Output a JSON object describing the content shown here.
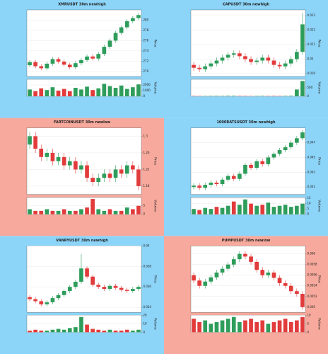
{
  "chart_data": [
    {
      "type": "candlestick",
      "title": "XMRUSDT 30m newhigh",
      "background": "#8cd4f8",
      "ylabel": "Price",
      "volume_label": "Volume",
      "up_color": "#2e9d5b",
      "down_color": "#e23b3b",
      "grid": true,
      "open": [
        271.2,
        271.8,
        271.0,
        270.6,
        271.5,
        272.4,
        271.9,
        271.3,
        270.8,
        271.6,
        272.2,
        272.9,
        272.5,
        273.4,
        274.8,
        276.0,
        277.5,
        278.6,
        279.8,
        280.4
      ],
      "high": [
        272.2,
        272.2,
        271.4,
        271.9,
        272.8,
        272.8,
        272.3,
        271.7,
        272.0,
        272.6,
        273.3,
        273.3,
        273.8,
        275.2,
        276.4,
        277.9,
        279.0,
        280.2,
        280.8,
        281.4
      ],
      "low": [
        270.8,
        270.6,
        270.2,
        270.2,
        271.1,
        271.5,
        270.9,
        270.4,
        270.4,
        271.2,
        271.8,
        272.1,
        272.1,
        273.0,
        274.4,
        275.6,
        277.1,
        278.2,
        279.4,
        280.0
      ],
      "close": [
        271.8,
        271.0,
        270.6,
        271.5,
        272.4,
        271.9,
        271.3,
        270.8,
        271.6,
        272.2,
        272.9,
        272.5,
        273.4,
        274.8,
        276.0,
        277.5,
        278.6,
        279.8,
        280.4,
        281.0
      ],
      "volume": [
        1200,
        900,
        1400,
        1100,
        1600,
        1000,
        1300,
        900,
        1500,
        1200,
        1700,
        1100,
        1400,
        2200,
        1800,
        1500,
        1900,
        1300,
        1600,
        2100
      ],
      "ylim": [
        269,
        282
      ],
      "yticks": [
        270,
        272,
        274,
        276,
        278,
        280
      ],
      "vlim": [
        0,
        3000
      ],
      "vticks": [
        0,
        1000,
        2000
      ]
    },
    {
      "type": "candlestick",
      "title": "CAPUSDT 30m newhigh",
      "background": "#8cd4f8",
      "ylabel": "Price",
      "volume_label": "Volume",
      "up_color": "#2e9d5b",
      "down_color": "#e23b3b",
      "grid": true,
      "open": [
        0.0196,
        0.0194,
        0.0193,
        0.0195,
        0.0197,
        0.0199,
        0.0201,
        0.0203,
        0.0204,
        0.0202,
        0.02,
        0.0198,
        0.0199,
        0.0201,
        0.0199,
        0.0196,
        0.0195,
        0.0197,
        0.02,
        0.0205
      ],
      "high": [
        0.0198,
        0.0196,
        0.0197,
        0.0199,
        0.0201,
        0.0203,
        0.0205,
        0.0206,
        0.0206,
        0.0204,
        0.0202,
        0.0201,
        0.0203,
        0.0203,
        0.0201,
        0.0198,
        0.0199,
        0.0202,
        0.0207,
        0.0232
      ],
      "low": [
        0.0192,
        0.0191,
        0.0191,
        0.0193,
        0.0195,
        0.0197,
        0.0199,
        0.0201,
        0.02,
        0.0198,
        0.0196,
        0.0196,
        0.0197,
        0.0197,
        0.0194,
        0.0193,
        0.0193,
        0.0195,
        0.0198,
        0.0203
      ],
      "close": [
        0.0194,
        0.0193,
        0.0195,
        0.0197,
        0.0199,
        0.0201,
        0.0203,
        0.0204,
        0.0202,
        0.02,
        0.0198,
        0.0199,
        0.0201,
        0.0199,
        0.0196,
        0.0195,
        0.0197,
        0.02,
        0.0205,
        0.0224
      ],
      "volume": [
        20,
        15,
        18,
        22,
        25,
        20,
        30,
        28,
        22,
        18,
        15,
        20,
        25,
        18,
        22,
        20,
        25,
        30,
        400,
        900
      ],
      "ylim": [
        0.0188,
        0.0234
      ],
      "yticks": [
        0.019,
        0.02,
        0.021,
        0.022,
        0.023
      ],
      "vlim": [
        0,
        1000
      ],
      "vticks": [
        0,
        500
      ]
    },
    {
      "type": "candlestick",
      "title": "FARTCOINUSDT 30m newlow",
      "background": "#f6a99c",
      "ylabel": "Price",
      "volume_label": "Volume",
      "up_color": "#2e9d5b",
      "down_color": "#e23b3b",
      "grid": true,
      "open": [
        1.28,
        1.3,
        1.27,
        1.25,
        1.26,
        1.24,
        1.25,
        1.23,
        1.24,
        1.22,
        1.23,
        1.2,
        1.19,
        1.2,
        1.21,
        1.2,
        1.22,
        1.21,
        1.23,
        1.22
      ],
      "high": [
        1.31,
        1.31,
        1.28,
        1.27,
        1.27,
        1.26,
        1.26,
        1.25,
        1.25,
        1.24,
        1.24,
        1.21,
        1.21,
        1.22,
        1.22,
        1.23,
        1.23,
        1.24,
        1.24,
        1.23
      ],
      "low": [
        1.27,
        1.26,
        1.24,
        1.24,
        1.23,
        1.23,
        1.22,
        1.22,
        1.21,
        1.21,
        1.19,
        1.18,
        1.18,
        1.19,
        1.19,
        1.19,
        1.2,
        1.2,
        1.21,
        1.17
      ],
      "close": [
        1.3,
        1.27,
        1.25,
        1.26,
        1.24,
        1.25,
        1.23,
        1.24,
        1.22,
        1.23,
        1.2,
        1.19,
        1.2,
        1.21,
        1.2,
        1.22,
        1.21,
        1.23,
        1.22,
        1.18
      ],
      "volume": [
        3,
        2,
        2,
        3,
        2,
        2,
        3,
        2,
        2,
        3,
        4,
        9,
        3,
        2,
        3,
        2,
        2,
        4,
        3,
        5
      ],
      "ylim": [
        1.16,
        1.32
      ],
      "yticks": [
        1.18,
        1.22,
        1.26,
        1.3
      ],
      "vlim": [
        0,
        10
      ],
      "vticks": [
        0,
        5
      ]
    },
    {
      "type": "candlestick",
      "title": "1000RATSUSDT 30m newhigh",
      "background": "#8cd4f8",
      "ylabel": "Price",
      "volume_label": "Volume",
      "up_color": "#2e9d5b",
      "down_color": "#e23b3b",
      "grid": true,
      "open": [
        0.041,
        0.0412,
        0.0409,
        0.0413,
        0.0416,
        0.0414,
        0.042,
        0.0425,
        0.0421,
        0.0428,
        0.044,
        0.0436,
        0.0445,
        0.0441,
        0.045,
        0.0455,
        0.046,
        0.0464,
        0.047,
        0.0476
      ],
      "high": [
        0.0415,
        0.0415,
        0.0416,
        0.0419,
        0.0419,
        0.0423,
        0.0428,
        0.0428,
        0.0431,
        0.0443,
        0.0443,
        0.0448,
        0.0448,
        0.0453,
        0.0458,
        0.0463,
        0.0467,
        0.0473,
        0.0479,
        0.0487
      ],
      "low": [
        0.0407,
        0.0406,
        0.0406,
        0.041,
        0.0411,
        0.0411,
        0.0417,
        0.0418,
        0.0418,
        0.0425,
        0.0433,
        0.0433,
        0.0438,
        0.0438,
        0.0447,
        0.0452,
        0.0457,
        0.0461,
        0.0467,
        0.0473
      ],
      "close": [
        0.0412,
        0.0409,
        0.0413,
        0.0416,
        0.0414,
        0.042,
        0.0425,
        0.0421,
        0.0428,
        0.044,
        0.0436,
        0.0445,
        0.0441,
        0.045,
        0.0455,
        0.046,
        0.0464,
        0.047,
        0.0476,
        0.0484
      ],
      "volume": [
        5,
        4,
        6,
        5,
        7,
        6,
        8,
        12,
        9,
        14,
        10,
        8,
        9,
        11,
        7,
        8,
        9,
        7,
        8,
        10
      ],
      "ylim": [
        0.04,
        0.049
      ],
      "yticks": [
        0.041,
        0.043,
        0.045,
        0.047
      ],
      "vlim": [
        0,
        16
      ],
      "vticks": [
        0,
        5,
        10,
        15
      ]
    },
    {
      "type": "candlestick",
      "title": "VANRYUSDT 30m newhigh",
      "background": "#8cd4f8",
      "ylabel": "Price",
      "volume_label": "Volume",
      "up_color": "#2e9d5b",
      "down_color": "#e23b3b",
      "grid": true,
      "open": [
        0.035,
        0.0348,
        0.0346,
        0.0343,
        0.0345,
        0.0349,
        0.0352,
        0.0356,
        0.036,
        0.0365,
        0.0378,
        0.037,
        0.0362,
        0.036,
        0.0358,
        0.0361,
        0.0359,
        0.0357,
        0.0356,
        0.0358
      ],
      "high": [
        0.0352,
        0.035,
        0.0348,
        0.0347,
        0.0351,
        0.0354,
        0.0358,
        0.0362,
        0.0367,
        0.0392,
        0.038,
        0.0372,
        0.0364,
        0.0362,
        0.0363,
        0.0363,
        0.0361,
        0.0359,
        0.036,
        0.0362
      ],
      "low": [
        0.0346,
        0.0344,
        0.0341,
        0.0341,
        0.0343,
        0.0347,
        0.035,
        0.0354,
        0.0358,
        0.0363,
        0.0368,
        0.036,
        0.0358,
        0.0356,
        0.0356,
        0.0357,
        0.0355,
        0.0354,
        0.0354,
        0.0356
      ],
      "close": [
        0.0348,
        0.0346,
        0.0343,
        0.0345,
        0.0349,
        0.0352,
        0.0356,
        0.036,
        0.0365,
        0.0378,
        0.037,
        0.0362,
        0.036,
        0.0358,
        0.0361,
        0.0359,
        0.0357,
        0.0356,
        0.0358,
        0.036
      ],
      "volume": [
        2,
        3,
        2,
        2,
        3,
        4,
        3,
        5,
        6,
        18,
        9,
        4,
        3,
        2,
        3,
        2,
        2,
        3,
        2,
        3
      ],
      "ylim": [
        0.0335,
        0.04
      ],
      "yticks": [
        0.034,
        0.036,
        0.038,
        0.04
      ],
      "vlim": [
        0,
        20
      ],
      "vticks": [
        0,
        10,
        20
      ]
    },
    {
      "type": "candlestick",
      "title": "PUMPUSDT 30m newlow",
      "background": "#f6a99c",
      "ylabel": "Price",
      "volume_label": "Volume",
      "up_color": "#2e9d5b",
      "down_color": "#e23b3b",
      "grid": true,
      "open": [
        0.0056,
        0.0055,
        0.0054,
        0.00548,
        0.00556,
        0.00565,
        0.00572,
        0.0058,
        0.0059,
        0.006,
        0.00595,
        0.00585,
        0.0057,
        0.0056,
        0.00565,
        0.00555,
        0.00545,
        0.0054,
        0.0053,
        0.00525
      ],
      "high": [
        0.00565,
        0.00555,
        0.00553,
        0.00561,
        0.0057,
        0.00577,
        0.00585,
        0.00595,
        0.00605,
        0.00605,
        0.006,
        0.0059,
        0.00575,
        0.0057,
        0.0057,
        0.0056,
        0.0055,
        0.00545,
        0.00535,
        0.0053
      ],
      "low": [
        0.00545,
        0.00535,
        0.00535,
        0.00543,
        0.00551,
        0.0056,
        0.00567,
        0.00575,
        0.00585,
        0.0059,
        0.0058,
        0.00565,
        0.00555,
        0.00555,
        0.0055,
        0.0054,
        0.00535,
        0.00525,
        0.0052,
        0.00495
      ],
      "close": [
        0.0055,
        0.0054,
        0.00548,
        0.00556,
        0.00565,
        0.00572,
        0.0058,
        0.0059,
        0.006,
        0.00595,
        0.00585,
        0.0057,
        0.0056,
        0.00565,
        0.00555,
        0.00545,
        0.0054,
        0.0053,
        0.00525,
        0.005
      ],
      "volume": [
        8,
        6,
        7,
        5,
        6,
        7,
        8,
        9,
        6,
        7,
        8,
        6,
        7,
        5,
        6,
        7,
        8,
        6,
        7,
        9
      ],
      "ylim": [
        0.0049,
        0.00615
      ],
      "yticks": [
        0.005,
        0.0052,
        0.0054,
        0.0056,
        0.0058,
        0.006
      ],
      "vlim": [
        0,
        10
      ],
      "vticks": [
        0,
        5,
        10
      ]
    }
  ]
}
